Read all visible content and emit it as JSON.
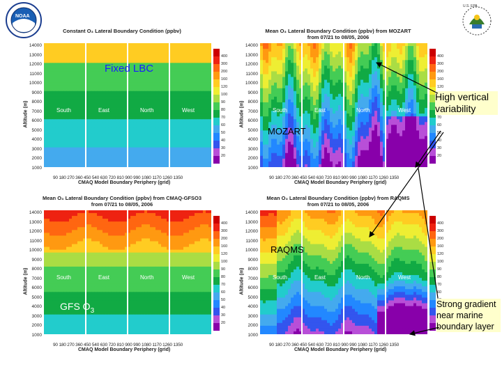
{
  "logos": {
    "left": "NOAA",
    "right": "U.S. EPA"
  },
  "panels": [
    {
      "title_line1": "Constant O₃ Lateral Boundary Condition (ppbv)",
      "title_line2": "",
      "overlay_label": "Fixed LBC",
      "overlay_sub": ""
    },
    {
      "title_line1": "Mean O₃ Lateral Boundary Condition (ppbv) from MOZART",
      "title_line2": "from 07/21 to 08/05, 2006",
      "overlay_label": "MOZART",
      "overlay_sub": ""
    },
    {
      "title_line1": "Mean O₃ Lateral Boundary Condition (ppbv) from CMAQ-GFSO3",
      "title_line2": "from 07/21 to 08/05, 2006",
      "overlay_label": "GFS O",
      "overlay_sub": "3"
    },
    {
      "title_line1": "Mean O₃ Lateral Boundary Condition (ppbv) from RAQMS",
      "title_line2": "from 07/21 to 08/05, 2006",
      "overlay_label": "RAQMS",
      "overlay_sub": ""
    }
  ],
  "callouts": {
    "top": "High vertical variability",
    "bottom": "Strong gradient near marine boundary layer"
  },
  "colors": {
    "scale": [
      "#8800aa",
      "#b84fd8",
      "#3355ee",
      "#2288ff",
      "#44aaee",
      "#22cccc",
      "#11aa44",
      "#44cc55",
      "#aadd44",
      "#eeee33",
      "#ffcc22",
      "#ff9911",
      "#ff6611",
      "#ee2211",
      "#cc0000"
    ]
  },
  "chart_data": [
    {
      "type": "heatmap",
      "title": "Constant O₃ Lateral Boundary Condition (ppbv)",
      "xlabel": "CMAQ Model Boundary Periphery (grid)",
      "ylabel": "Altitude (m)",
      "x_ticks": [
        "90",
        "180",
        "270",
        "360",
        "450",
        "540",
        "630",
        "720",
        "810",
        "900",
        "990",
        "1080",
        "1170",
        "1260",
        "1350"
      ],
      "y_ticks": [
        "1000",
        "2000",
        "3000",
        "4000",
        "5000",
        "6000",
        "7000",
        "8000",
        "9000",
        "10000",
        "11000",
        "12000",
        "13000",
        "14000"
      ],
      "ylim": [
        1000,
        14000
      ],
      "boundaries": [
        "South",
        "East",
        "North",
        "West"
      ],
      "colorbar_ticks": [
        "20",
        "30",
        "40",
        "50",
        "60",
        "70",
        "80",
        "90",
        "100",
        "120",
        "160",
        "200",
        "300",
        "400"
      ],
      "z_profile_by_altitude": [
        [
          1000,
          40
        ],
        [
          2500,
          40
        ],
        [
          3000,
          50
        ],
        [
          5000,
          50
        ],
        [
          5500,
          60
        ],
        [
          8500,
          70
        ],
        [
          9000,
          80
        ],
        [
          11000,
          80
        ],
        [
          12000,
          100
        ],
        [
          14000,
          160
        ]
      ]
    },
    {
      "type": "heatmap",
      "title": "Mean O₃ Lateral Boundary Condition (ppbv) from MOZART",
      "subtitle": "from 07/21 to 08/05, 2006",
      "xlabel": "CMAQ Model Boundary Periphery (grid)",
      "ylabel": "Altitude (m)",
      "x_ticks": [
        "90",
        "180",
        "270",
        "360",
        "450",
        "540",
        "630",
        "720",
        "810",
        "900",
        "990",
        "1080",
        "1170",
        "1260",
        "1350"
      ],
      "y_ticks": [
        "1000",
        "2000",
        "3000",
        "4000",
        "5000",
        "6000",
        "7000",
        "8000",
        "9000",
        "10000",
        "11000",
        "12000",
        "13000",
        "14000"
      ],
      "ylim": [
        1000,
        14000
      ],
      "boundaries": [
        "South",
        "East",
        "North",
        "West"
      ],
      "colorbar_ticks": [
        "20",
        "30",
        "40",
        "50",
        "60",
        "70",
        "80",
        "90",
        "100",
        "120",
        "160",
        "200",
        "300",
        "400"
      ]
    },
    {
      "type": "heatmap",
      "title": "Mean O₃ Lateral Boundary Condition (ppbv) from CMAQ-GFSO3",
      "subtitle": "from 07/21 to 08/05, 2006",
      "xlabel": "CMAQ Model Boundary Periphery (grid)",
      "ylabel": "Altitude (m)",
      "x_ticks": [
        "90",
        "180",
        "270",
        "360",
        "450",
        "540",
        "630",
        "720",
        "810",
        "900",
        "990",
        "1080",
        "1170",
        "1260",
        "1350"
      ],
      "y_ticks": [
        "1000",
        "2000",
        "3000",
        "4000",
        "5000",
        "6000",
        "7000",
        "8000",
        "9000",
        "10000",
        "11000",
        "12000",
        "13000",
        "14000"
      ],
      "ylim": [
        1000,
        14000
      ],
      "boundaries": [
        "South",
        "East",
        "North",
        "West"
      ],
      "colorbar_ticks": [
        "20",
        "30",
        "40",
        "50",
        "60",
        "70",
        "80",
        "90",
        "100",
        "120",
        "160",
        "200",
        "300",
        "400"
      ]
    },
    {
      "type": "heatmap",
      "title": "Mean O₃ Lateral Boundary Condition (ppbv) from RAQMS",
      "subtitle": "from 07/21 to 08/05, 2006",
      "xlabel": "CMAQ Model Boundary Periphery (grid)",
      "ylabel": "Altitude (m)",
      "x_ticks": [
        "90",
        "180",
        "270",
        "360",
        "450",
        "540",
        "630",
        "720",
        "810",
        "900",
        "990",
        "1080",
        "1170",
        "1260",
        "1350"
      ],
      "y_ticks": [
        "1000",
        "2000",
        "3000",
        "4000",
        "5000",
        "6000",
        "7000",
        "8000",
        "9000",
        "10000",
        "11000",
        "12000",
        "13000",
        "14000"
      ],
      "ylim": [
        1000,
        14000
      ],
      "boundaries": [
        "South",
        "East",
        "North",
        "West"
      ],
      "colorbar_ticks": [
        "20",
        "30",
        "40",
        "50",
        "60",
        "70",
        "80",
        "90",
        "100",
        "120",
        "160",
        "200",
        "300",
        "400"
      ]
    }
  ]
}
